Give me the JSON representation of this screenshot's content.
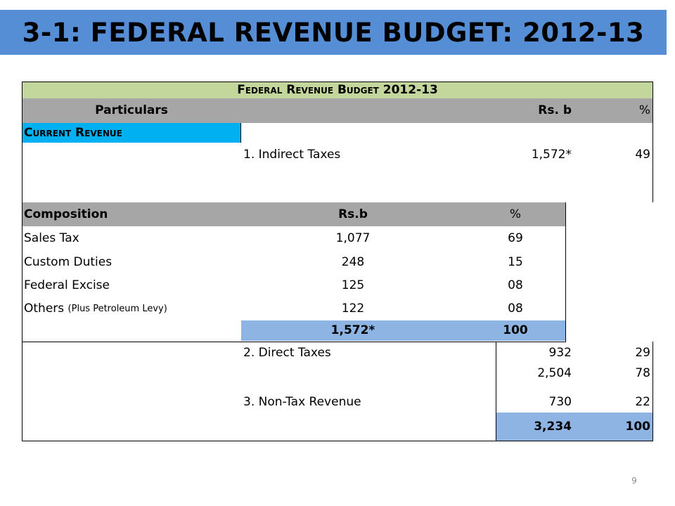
{
  "slide": {
    "title": "3-1: FEDERAL REVENUE BUDGET: 2012-13",
    "page_number": "9",
    "colors": {
      "banner": "#558ed5",
      "header_green": "#c3d69b",
      "header_gray": "#a6a6a6",
      "current_revenue": "#00b0f0",
      "total_blue": "#8eb4e3"
    }
  },
  "table": {
    "caption": "Federal Revenue Budget 2012-13",
    "headers": {
      "particulars": "Particulars",
      "rs": "Rs. b",
      "pct": "%"
    },
    "current_revenue_label": "Current Revenue",
    "indirect": {
      "label": "1. Indirect Taxes",
      "rs": "1,572*",
      "pct": "49"
    },
    "composition": {
      "headers": {
        "name": "Composition",
        "rs": "Rs.b",
        "pct": "%"
      },
      "rows": [
        {
          "name": "Sales Tax",
          "note": "",
          "rs": "1,077",
          "pct": "69"
        },
        {
          "name": "Custom Duties",
          "note": "",
          "rs": "248",
          "pct": "15"
        },
        {
          "name": "Federal Excise",
          "note": "",
          "rs": "125",
          "pct": "08"
        },
        {
          "name": "Others",
          "note": "(Plus Petroleum Levy)",
          "rs": "122",
          "pct": "08"
        }
      ],
      "total": {
        "rs": "1,572*",
        "pct": "100"
      }
    },
    "direct": {
      "label": "2. Direct Taxes",
      "rs": "932",
      "pct": "29"
    },
    "tax_subtotal": {
      "rs": "2,504",
      "pct": "78"
    },
    "non_tax": {
      "label": "3. Non-Tax Revenue",
      "rs": "730",
      "pct": "22"
    },
    "grand_total": {
      "rs": "3,234",
      "pct": "100"
    }
  }
}
